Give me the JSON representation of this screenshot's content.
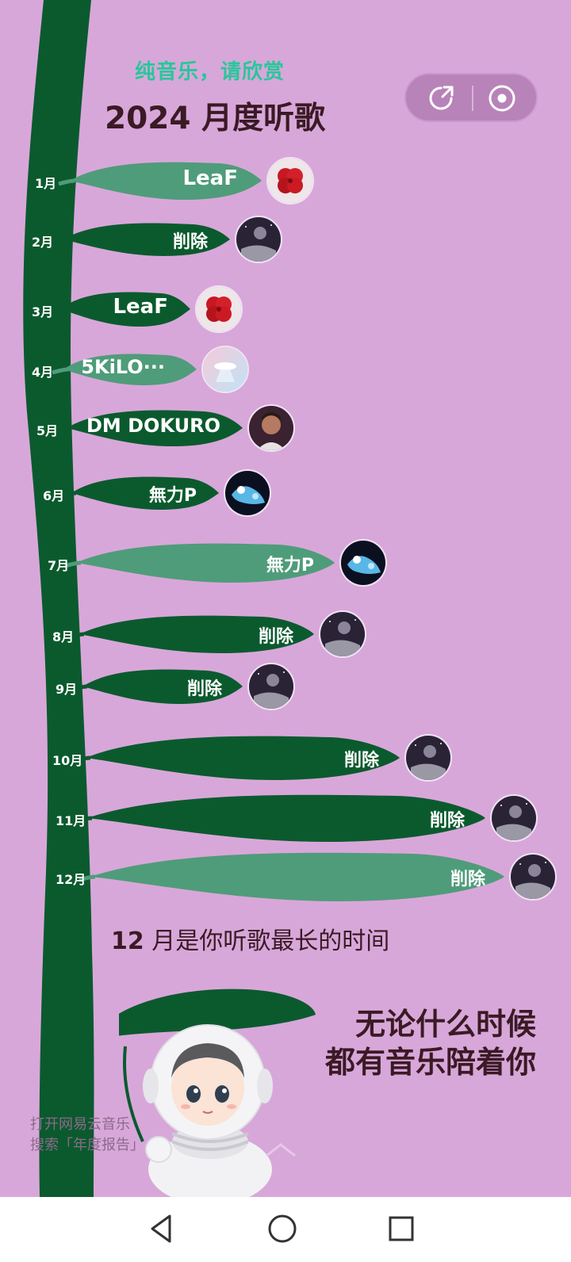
{
  "header": {
    "tagline": "纯音乐，请欣赏",
    "title": "2024 月度听歌"
  },
  "toolbar": {
    "share_icon": "share-arrow-icon",
    "target_icon": "target-circle-icon"
  },
  "months": [
    {
      "label": "1月",
      "artist": "LeaF",
      "avatar": "red-flower-art"
    },
    {
      "label": "2月",
      "artist": "削除",
      "avatar": "dark-space-art"
    },
    {
      "label": "3月",
      "artist": "LeaF",
      "avatar": "red-flower-art"
    },
    {
      "label": "4月",
      "artist": "5KiLO···",
      "avatar": "pastel-cloud-art"
    },
    {
      "label": "5月",
      "artist": "DM DOKURO",
      "avatar": "portrait-photo"
    },
    {
      "label": "6月",
      "artist": "無力P",
      "avatar": "blue-anime-art"
    },
    {
      "label": "7月",
      "artist": "無力P",
      "avatar": "blue-anime-art"
    },
    {
      "label": "8月",
      "artist": "削除",
      "avatar": "dark-space-art"
    },
    {
      "label": "9月",
      "artist": "削除",
      "avatar": "dark-space-art"
    },
    {
      "label": "10月",
      "artist": "削除",
      "avatar": "dark-space-art"
    },
    {
      "label": "11月",
      "artist": "削除",
      "avatar": "dark-space-art"
    },
    {
      "label": "12月",
      "artist": "削除",
      "avatar": "dark-space-art"
    }
  ],
  "summary": {
    "month": "12",
    "text": " 月是你听歌最长的时间"
  },
  "closing": {
    "line1": "无论什么时候",
    "line2": "都有音乐陪着你"
  },
  "hint": {
    "line1": "打开网易云音乐",
    "line2": "搜索「年度报告」"
  },
  "colors": {
    "background": "#d8a7d9",
    "dark_green": "#0b5a2e",
    "light_green": "#4f9c7a",
    "accent_teal": "#27c79b",
    "title": "#3a1a24"
  },
  "navbar": {
    "back_icon": "back-triangle-icon",
    "home_icon": "home-circle-icon",
    "recents_icon": "recents-square-icon"
  }
}
